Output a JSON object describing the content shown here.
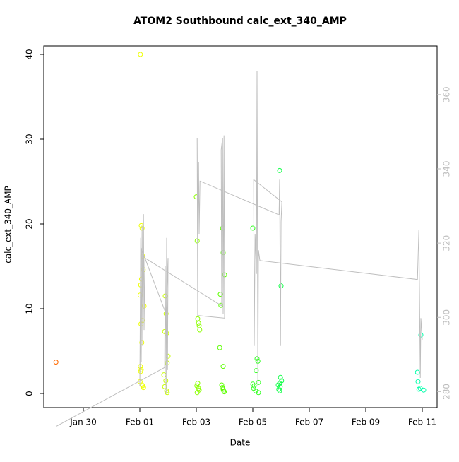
{
  "chart_data": {
    "type": "scatter",
    "title": "ATOM2 Southbound calc_ext_340_AMP",
    "x_label": "Date",
    "y_label": "calc_ext_340_AMP",
    "xlim": [
      28.6,
      42.525
    ],
    "ylim": [
      -1.667,
      41
    ],
    "y2lim": [
      275.7,
      373.1
    ],
    "xticks": [
      {
        "value": 30,
        "label": "Jan 30"
      },
      {
        "value": 32,
        "label": "Feb 01"
      },
      {
        "value": 34,
        "label": "Feb 03"
      },
      {
        "value": 36,
        "label": "Feb 05"
      },
      {
        "value": 38,
        "label": "Feb 07"
      },
      {
        "value": 40,
        "label": "Feb 09"
      },
      {
        "value": 42,
        "label": "Feb 11"
      }
    ],
    "yticks": [
      0,
      10,
      20,
      30,
      40
    ],
    "y2ticks": [
      280,
      300,
      320,
      340,
      360
    ],
    "y2_color": "#bebebe",
    "series": [
      {
        "color": "#ff6a00",
        "x": [
          29.03
        ],
        "values": [
          3.7
        ]
      },
      {
        "color": "#eeff00",
        "x": [
          32.02,
          32.05,
          32.08,
          32.1,
          32.12,
          32.06,
          32.03,
          32.01,
          32.15,
          32.09,
          32.04,
          32.07,
          32.02,
          32.05,
          32.03,
          32.01,
          32.08,
          32.1,
          32.13
        ],
        "values": [
          40,
          19.8,
          19.5,
          16.2,
          14.6,
          13.5,
          12.8,
          11.6,
          10.3,
          8.6,
          8.2,
          6.0,
          3.2,
          2.8,
          2.6,
          1.4,
          1.0,
          0.9,
          0.7
        ]
      },
      {
        "color": "#c8ff00",
        "x": [
          32.9,
          32.93,
          32.88,
          32.95,
          33.0,
          32.97,
          32.85,
          32.92,
          32.88,
          32.95,
          32.97
        ],
        "values": [
          11.5,
          9.4,
          7.3,
          7.1,
          4.4,
          3.6,
          2.2,
          1.5,
          0.8,
          0.3,
          0.1
        ]
      },
      {
        "color": "#8cff00",
        "x": [
          34.0,
          34.03,
          34.05,
          34.08,
          34.1,
          34.12,
          34.05,
          34.02,
          34.08,
          34.1,
          34.03
        ],
        "values": [
          23.2,
          18.0,
          8.8,
          8.3,
          8.0,
          7.5,
          1.2,
          0.9,
          0.6,
          0.4,
          0.1
        ]
      },
      {
        "color": "#5cff00",
        "x": [
          34.93,
          34.95,
          35.0,
          34.85,
          34.87,
          34.83,
          34.95,
          34.9,
          34.92,
          34.95,
          34.97,
          34.99
        ],
        "values": [
          19.5,
          16.6,
          14.0,
          11.7,
          10.4,
          5.4,
          3.2,
          1.0,
          0.7,
          0.5,
          0.3,
          0.2
        ]
      },
      {
        "color": "#30ff20",
        "x": [
          36.0,
          36.15,
          36.18,
          36.12,
          36.2,
          36.0,
          36.05,
          36.03,
          36.1,
          36.2
        ],
        "values": [
          19.5,
          4.1,
          3.8,
          2.7,
          1.3,
          1.1,
          0.9,
          0.6,
          0.3,
          0.1
        ]
      },
      {
        "color": "#10ff48",
        "x": [
          36.95,
          37.0,
          36.98,
          37.02,
          36.95,
          36.9,
          36.97,
          36.92,
          36.95
        ],
        "values": [
          26.3,
          12.7,
          1.9,
          1.5,
          1.2,
          1.0,
          0.8,
          0.5,
          0.3
        ]
      },
      {
        "color": "#00ffaa",
        "x": [
          41.95,
          41.83,
          41.85,
          41.93,
          41.88,
          42.05
        ],
        "values": [
          6.9,
          2.5,
          1.4,
          0.6,
          0.5,
          0.4
        ]
      },
      {
        "type": "line",
        "axis": "y2",
        "color": "#bebebe",
        "x": [
          29.05,
          32.88,
          32.9,
          32.93,
          32.95,
          32.98,
          33.0,
          32.93,
          32.05,
          32.0,
          32.03,
          32.05,
          32.08,
          32.1,
          32.13,
          32.15,
          32.18,
          34.9,
          34.88,
          34.93,
          34.95,
          34.98,
          35.0,
          34.05,
          34.03,
          34.05,
          34.08,
          34.1,
          34.13,
          36.93,
          36.95,
          36.98,
          37.0,
          37.03,
          36.03,
          36.05,
          36.08,
          36.13,
          36.15,
          36.18,
          36.2,
          36.25,
          41.83,
          41.88,
          41.93,
          41.95,
          42.0
        ],
        "values": [
          270.7,
          286.5,
          313.8,
          279.4,
          321.4,
          285.8,
          316.0,
          300.9,
          318.6,
          281.5,
          321.4,
          288.0,
          324.6,
          292.3,
          327.8,
          296.6,
          316.0,
          303.1,
          345.1,
          348.3,
          300.9,
          349.0,
          299.8,
          300.5,
          348.3,
          318.1,
          341.9,
          322.5,
          336.7,
          327.6,
          337.1,
          292.3,
          325.7,
          331.1,
          337.1,
          292.3,
          322.5,
          311.7,
          366.4,
          281.5,
          318.1,
          315.3,
          310.2,
          323.5,
          283.7,
          299.8,
          294.0
        ]
      }
    ]
  }
}
